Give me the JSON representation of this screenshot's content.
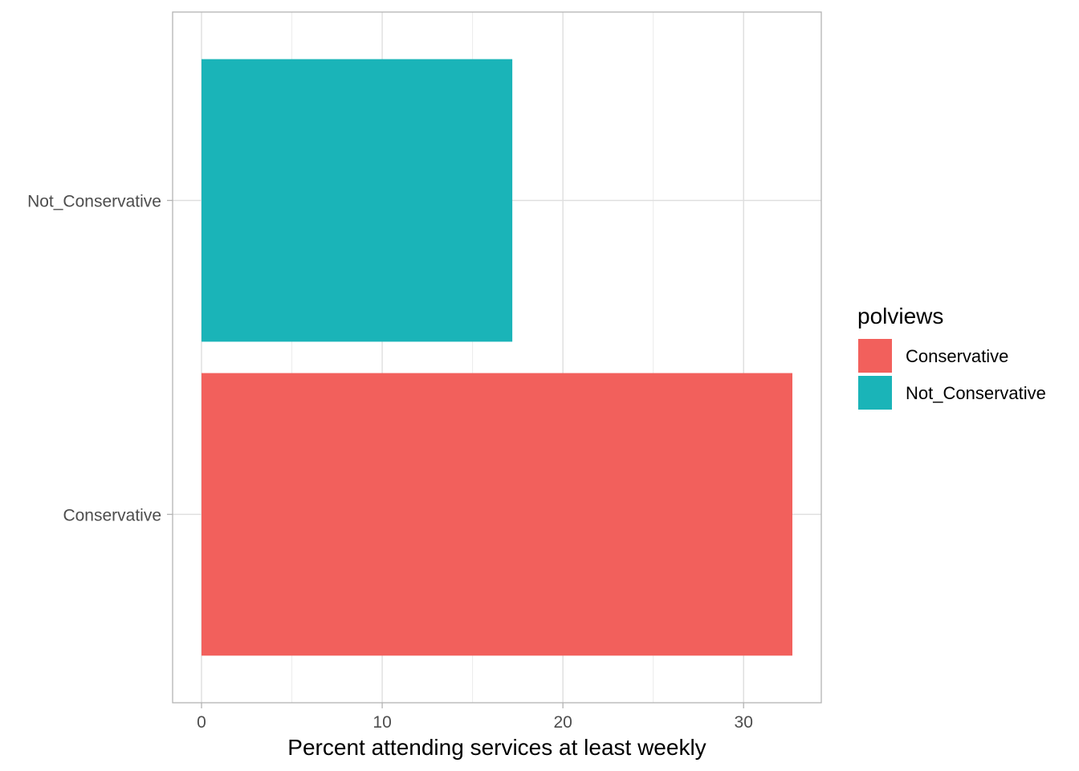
{
  "chart_data": {
    "type": "bar",
    "orientation": "horizontal",
    "categories": [
      "Conservative",
      "Not_Conservative"
    ],
    "values": [
      32.7,
      17.2
    ],
    "colors": [
      "#F8766D",
      "#00BFC4"
    ],
    "bar_colors_rendered": [
      "#f2605c",
      "#1ab4b8"
    ],
    "xlabel": "Percent attending services at least weekly",
    "ylabel": "",
    "xlim": [
      -1.6,
      34.3
    ],
    "x_ticks": [
      0,
      10,
      20,
      30
    ],
    "x_tick_labels": [
      "0",
      "10",
      "20",
      "30"
    ],
    "grid": true,
    "legend": {
      "title": "polviews",
      "placement": "right",
      "entries": [
        "Conservative",
        "Not_Conservative"
      ]
    }
  }
}
